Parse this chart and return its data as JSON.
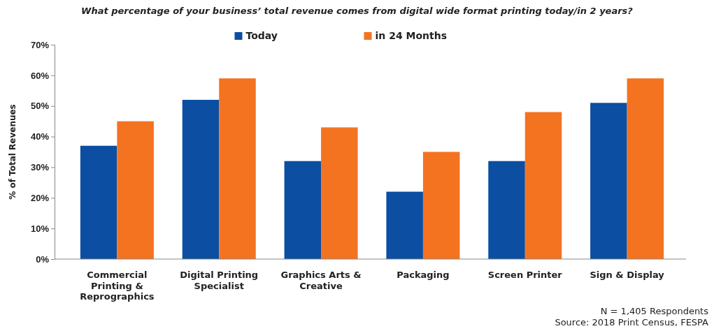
{
  "chart_data": {
    "type": "bar",
    "title": "What percentage of your business’ total revenue comes from digital wide format printing today/in 2 years?",
    "ylabel": "% of Total Revenues",
    "categories": [
      "Commercial Printing & Reprographics",
      "Digital Printing Specialist",
      "Graphics Arts & Creative",
      "Packaging",
      "Screen Printer",
      "Sign & Display"
    ],
    "series": [
      {
        "name": "Today",
        "color": "#0b4ea2",
        "values": [
          37,
          52,
          32,
          22,
          32,
          51
        ]
      },
      {
        "name": "in 24 Months",
        "color": "#f47321",
        "values": [
          45,
          59,
          43,
          35,
          48,
          59
        ]
      }
    ],
    "ylim": [
      0,
      70
    ],
    "yticks": [
      {
        "value": 0,
        "label": "0%"
      },
      {
        "value": 10,
        "label": "10%"
      },
      {
        "value": 20,
        "label": "20%"
      },
      {
        "value": 30,
        "label": "30%"
      },
      {
        "value": 40,
        "label": "40%"
      },
      {
        "value": 50,
        "label": "50%"
      },
      {
        "value": 60,
        "label": "60%"
      },
      {
        "value": 70,
        "label": "70%"
      }
    ],
    "legend": "top",
    "annotations": [
      "N = 1,405 Respondents",
      "Source: 2018 Print Census, FESPA"
    ]
  }
}
